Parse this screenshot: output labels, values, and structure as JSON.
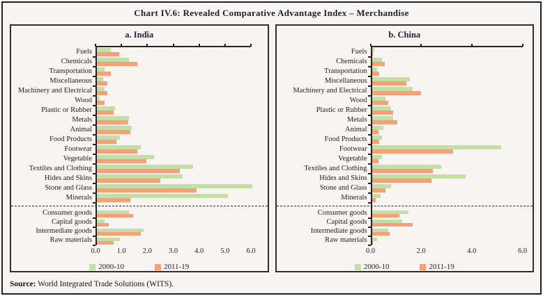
{
  "figure": {
    "title": "Chart IV.6: Revealed Comparative Advantage Index – Merchandise"
  },
  "source": {
    "label": "Source:",
    "text": " World Integrated Trade Solutions (WITS)."
  },
  "colors": {
    "series_2000_10": "#c4dfa6",
    "series_2011_19": "#f7a078",
    "background": "#f7f4f2",
    "axis": "#232323"
  },
  "legend": [
    {
      "label": "2000-10",
      "color": "#c4dfa6"
    },
    {
      "label": "2011-19",
      "color": "#f7a078"
    }
  ],
  "chart_data": [
    {
      "type": "bar",
      "orientation": "horizontal",
      "title": "a. India",
      "xlim": [
        0,
        6.0
      ],
      "xtick_values": [
        0,
        1,
        2,
        3,
        4,
        5,
        6
      ],
      "xtick_labels": [
        "0.0",
        "1.0",
        "2.0",
        "3.0",
        "4.0",
        "5.0",
        "6.0"
      ],
      "grid": false,
      "legend_position": "bottom",
      "categories": [
        "Fuels",
        "Chemicals",
        "Transportation",
        "Miscellaneous",
        "Machinery and Electrical",
        "Wood",
        "Plastic or Rubber",
        "Metals",
        "Animal",
        "Food Products",
        "Footwear",
        "Vegetable",
        "Textiles and Clothing",
        "Hides and Skins",
        "Stone and Glass",
        "Minerals"
      ],
      "series": [
        {
          "name": "2000-10",
          "values": [
            0.55,
            1.25,
            0.3,
            0.25,
            0.3,
            0.1,
            0.7,
            1.25,
            1.35,
            0.9,
            1.7,
            2.2,
            3.7,
            3.3,
            6.0,
            5.05
          ]
        },
        {
          "name": "2011-19",
          "values": [
            0.85,
            1.55,
            0.55,
            0.4,
            0.4,
            0.3,
            0.65,
            1.2,
            1.3,
            0.75,
            1.55,
            1.9,
            3.2,
            2.45,
            3.85,
            1.3
          ]
        }
      ],
      "aggregates": {
        "categories": [
          "Consumer goods",
          "Capital goods",
          "Intermediate goods",
          "Raw materials"
        ],
        "series": [
          {
            "name": "2000-10",
            "values": [
              1.25,
              0.3,
              1.8,
              0.9
            ]
          },
          {
            "name": "2011-19",
            "values": [
              1.4,
              0.45,
              1.7,
              0.65
            ]
          }
        ]
      }
    },
    {
      "type": "bar",
      "orientation": "horizontal",
      "title": "b. China",
      "xlim": [
        0,
        6.0
      ],
      "xtick_values": [
        0,
        2,
        4,
        6
      ],
      "xtick_labels": [
        "0.0",
        "2.0",
        "4.0",
        "6.0"
      ],
      "grid": false,
      "legend_position": "bottom",
      "categories": [
        "Fuels",
        "Chemicals",
        "Transportation",
        "Miscellaneous",
        "Machinery and Electrical",
        "Wood",
        "Plastic or Rubber",
        "Metals",
        "Animal",
        "Food Products",
        "Footwear",
        "Vegetable",
        "Textiles and Clothing",
        "Hides and Skins",
        "Stone and Glass",
        "Minerals"
      ],
      "series": [
        {
          "name": "2000-10",
          "values": [
            0.1,
            0.4,
            0.2,
            1.5,
            1.6,
            0.55,
            0.75,
            0.85,
            0.45,
            0.4,
            5.1,
            0.4,
            2.75,
            3.7,
            0.75,
            0.35
          ]
        },
        {
          "name": "2011-19",
          "values": [
            0.05,
            0.5,
            0.3,
            1.35,
            1.95,
            0.65,
            0.85,
            1.0,
            0.25,
            0.3,
            3.2,
            0.25,
            2.4,
            2.35,
            0.55,
            0.15
          ]
        }
      ],
      "aggregates": {
        "categories": [
          "Consumer goods",
          "Capital goods",
          "Intermediate goods",
          "Raw materials"
        ],
        "series": [
          {
            "name": "2000-10",
            "values": [
              1.45,
              1.2,
              0.65,
              0.2
            ]
          },
          {
            "name": "2011-19",
            "values": [
              1.1,
              1.6,
              0.7,
              0.05
            ]
          }
        ]
      }
    }
  ]
}
